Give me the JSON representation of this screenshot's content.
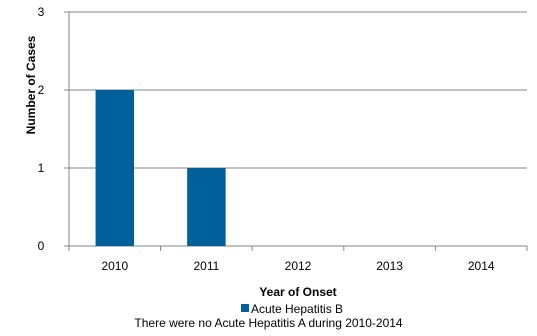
{
  "chart_data": {
    "type": "bar",
    "categories": [
      "2010",
      "2011",
      "2012",
      "2013",
      "2014"
    ],
    "series": [
      {
        "name": "Acute Hepatitis B",
        "values": [
          2,
          1,
          0,
          0,
          0
        ],
        "color": "#00609C"
      }
    ],
    "xlabel": "Year of Onset",
    "ylabel": "Number of Cases",
    "ylim": [
      0,
      3
    ],
    "yticks": [
      0,
      1,
      2,
      3
    ],
    "grid": true,
    "legend_position": "bottom"
  },
  "footnote": "There were no Acute Hepatitis A during 2010-2014"
}
